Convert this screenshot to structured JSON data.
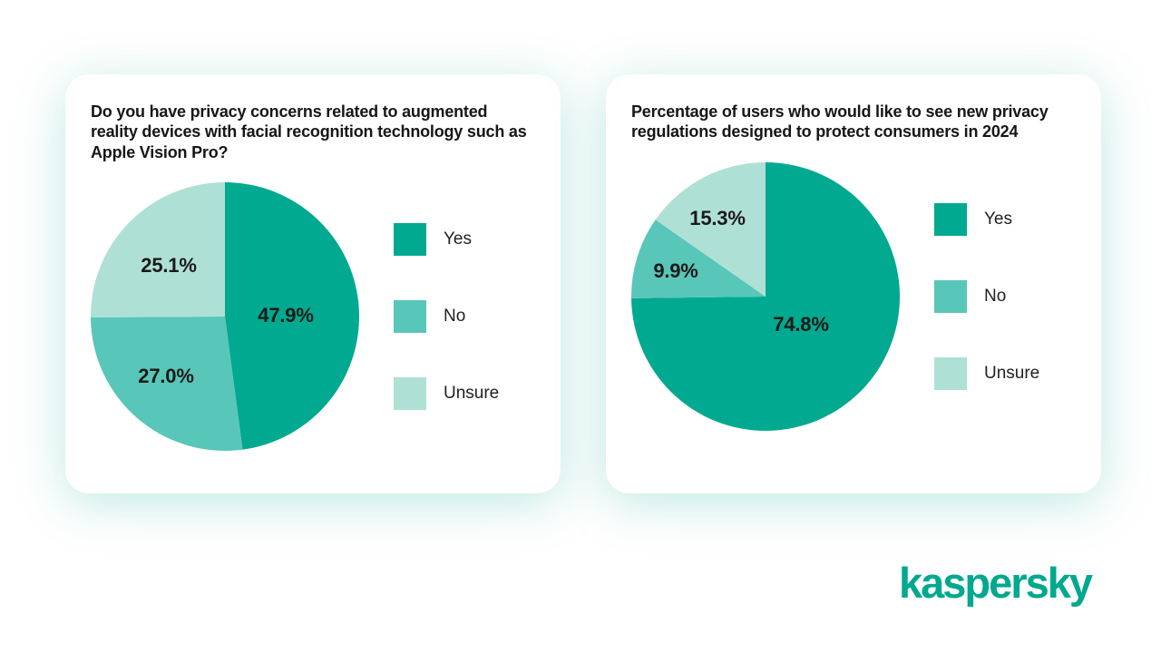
{
  "brand": {
    "logo_text": "kaspersky",
    "color": "#00a88e"
  },
  "palette": {
    "yes": "#00a98f",
    "no": "#58c6b9",
    "unsure": "#aee0d6",
    "card_glow": "rgba(0,168,142,0.25)",
    "text": "#1d1d1b"
  },
  "chart_data": [
    {
      "type": "pie",
      "title": "Do you have privacy concerns related to augmented reality devices with facial recognition technology such as Apple Vision Pro?",
      "labels": [
        "Yes",
        "No",
        "Unsure"
      ],
      "values": [
        47.9,
        27.0,
        25.1
      ],
      "display_values": [
        "47.9%",
        "27.0%",
        "25.1%"
      ],
      "slice_colors": [
        "#00a98f",
        "#58c6b9",
        "#aee0d6"
      ],
      "legend_position": "right",
      "start_angle_deg": 0,
      "direction": "clockwise"
    },
    {
      "type": "pie",
      "title": "Percentage of users who would like to see new privacy regulations designed to protect consumers in 2024",
      "labels": [
        "Yes",
        "No",
        "Unsure"
      ],
      "values": [
        74.8,
        9.9,
        15.3
      ],
      "display_values": [
        "74.8%",
        "9.9%",
        "15.3%"
      ],
      "slice_colors": [
        "#00a98f",
        "#58c6b9",
        "#aee0d6"
      ],
      "legend_position": "right",
      "start_angle_deg": 0,
      "direction": "clockwise"
    }
  ]
}
